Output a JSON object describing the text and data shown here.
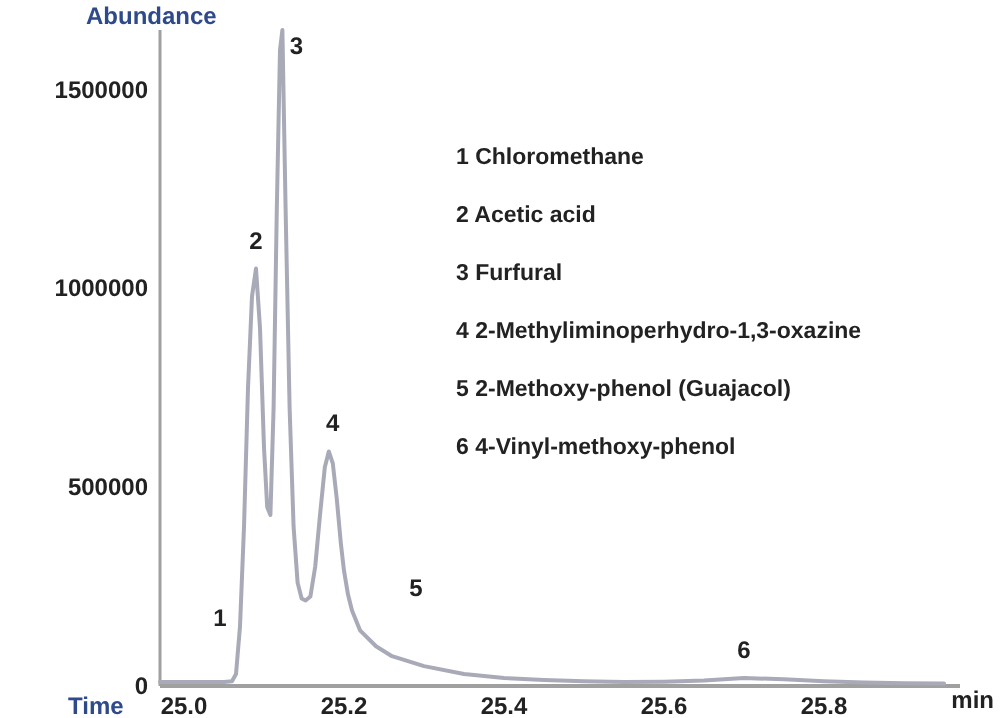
{
  "chart_data": {
    "type": "line",
    "ylabel": "Abundance",
    "xlabel": "min",
    "x": [
      24.97,
      25.0,
      25.05,
      25.06,
      25.065,
      25.07,
      25.075,
      25.08,
      25.085,
      25.09,
      25.095,
      25.1,
      25.104,
      25.108,
      25.112,
      25.116,
      25.12,
      25.123,
      25.127,
      25.132,
      25.137,
      25.142,
      25.147,
      25.152,
      25.158,
      25.164,
      25.17,
      25.176,
      25.181,
      25.186,
      25.191,
      25.196,
      25.2,
      25.205,
      25.21,
      25.22,
      25.24,
      25.26,
      25.3,
      25.35,
      25.4,
      25.45,
      25.5,
      25.55,
      25.6,
      25.65,
      25.7,
      25.75,
      25.8,
      25.85,
      25.9,
      25.95
    ],
    "series": [
      {
        "color": "#a9aab8",
        "values": [
          10000,
          10000,
          10000,
          12000,
          30000,
          150000,
          400000,
          750000,
          980000,
          1050000,
          900000,
          600000,
          450000,
          430000,
          700000,
          1200000,
          1600000,
          1650000,
          1200000,
          700000,
          400000,
          260000,
          220000,
          215000,
          225000,
          300000,
          430000,
          550000,
          590000,
          560000,
          470000,
          360000,
          290000,
          230000,
          190000,
          140000,
          100000,
          75000,
          50000,
          30000,
          20000,
          15000,
          12000,
          10000,
          11000,
          14000,
          20000,
          17000,
          12000,
          9000,
          7000,
          6000
        ]
      }
    ],
    "xlim": [
      24.97,
      25.97
    ],
    "xticks": [
      {
        "value": 25,
        "label": "25.0"
      },
      25.2,
      25.4,
      25.6,
      25.8
    ],
    "ylim": [
      0,
      1650000
    ],
    "yticks": [
      0,
      500000,
      1000000,
      1500000
    ],
    "grid": false,
    "marker": "none",
    "line_style": "solid",
    "annotations": [
      "Time",
      "1  Chloromethane",
      "2  Acetic acid",
      "3  Furfural",
      "4  2-Methyliminoperhydro-1,3-oxazine",
      "5  2-Methoxy-phenol (Guajacol)",
      "6 4-Vinyl-methoxy-phenol",
      {
        "text": "1",
        "x": 25.07,
        "y": 150000
      },
      {
        "text": "2",
        "x": 25.09,
        "y": 1050000
      },
      {
        "text": "3",
        "x": 25.123,
        "y": 1650000
      },
      {
        "text": "4",
        "x": 25.186,
        "y": 590000
      },
      {
        "text": "5",
        "x": 25.26,
        "y": 75000
      },
      {
        "text": "6",
        "x": 25.7,
        "y": 20000
      }
    ]
  }
}
